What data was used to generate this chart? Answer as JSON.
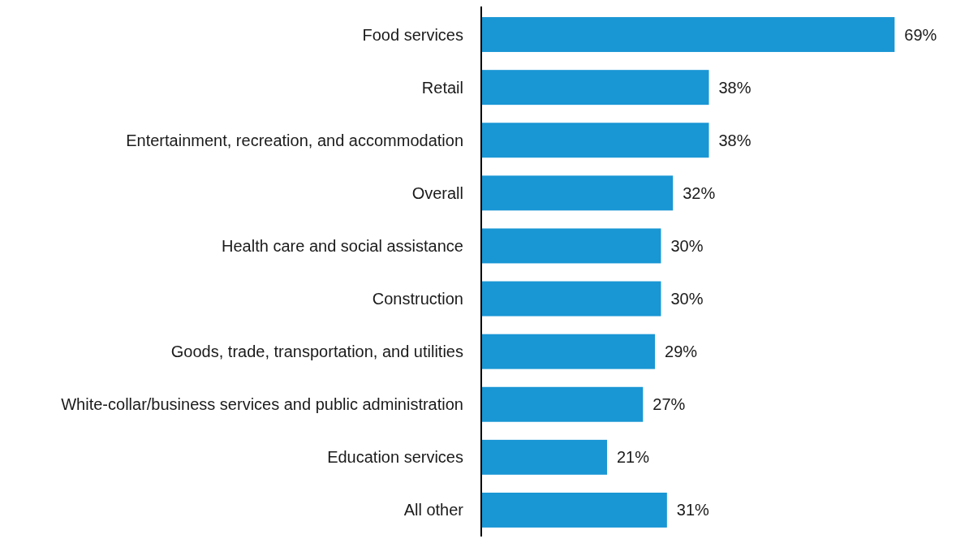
{
  "chart_data": {
    "type": "bar",
    "orientation": "horizontal",
    "categories": [
      "Food services",
      "Retail",
      "Entertainment, recreation, and accommodation",
      "Overall",
      "Health care and social assistance",
      "Construction",
      "Goods, trade, transportation, and utilities",
      "White-collar/business services and public administration",
      "Education services",
      "All other"
    ],
    "values": [
      69,
      38,
      38,
      32,
      30,
      30,
      29,
      27,
      21,
      31
    ],
    "value_labels": [
      "69%",
      "38%",
      "38%",
      "32%",
      "30%",
      "30%",
      "29%",
      "27%",
      "21%",
      "31%"
    ],
    "color": "#1996d4",
    "tick_labels": "y"
  }
}
